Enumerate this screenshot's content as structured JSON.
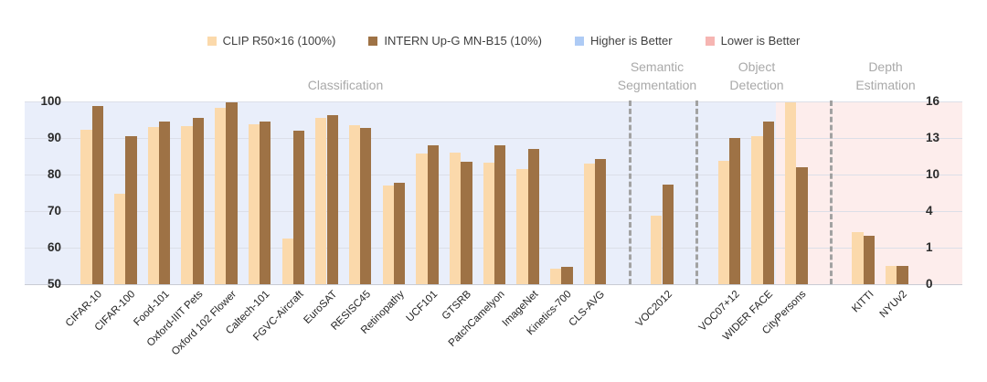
{
  "legend": {
    "items": [
      {
        "label": "CLIP R50×16 (100%)",
        "color": "#fbd9ab"
      },
      {
        "label": "INTERN Up-G MN-B15 (10%)",
        "color": "#9e7245"
      },
      {
        "label": "Higher is Better",
        "color": "#aecbf5"
      },
      {
        "label": "Lower is Better",
        "color": "#f6b5b2"
      }
    ]
  },
  "section_headers": {
    "classification": "Classification",
    "semantic_segmentation": "Semantic Segmentation",
    "object_detection": "Object Detection",
    "depth_estimation": "Depth Estimation"
  },
  "chart_data": {
    "type": "bar",
    "series": [
      {
        "name": "CLIP R50×16 (100%)",
        "color": "#fbd9ab"
      },
      {
        "name": "INTERN Up-G MN-B15 (10%)",
        "color": "#9e7245"
      }
    ],
    "left_axis": {
      "ticks": [
        100,
        90,
        80,
        70,
        60,
        50
      ],
      "min": 50,
      "max": 100,
      "applies_to": "Higher is Better"
    },
    "right_axis": {
      "ticks": [
        16,
        13,
        10,
        4,
        1,
        0
      ],
      "nonlinear_stops": [
        0,
        1,
        4,
        10,
        13,
        16
      ],
      "applies_to": "Lower is Better"
    },
    "background_regions": [
      {
        "label": "Higher is Better",
        "color": "#e9eefa"
      },
      {
        "label": "Lower is Better",
        "color": "#fdedec"
      }
    ],
    "grid": true,
    "legend_position": "top",
    "groups": [
      {
        "category": "CIFAR-10",
        "section": "Classification",
        "axis": "left",
        "values": [
          92.2,
          98.7
        ]
      },
      {
        "category": "CIFAR-100",
        "section": "Classification",
        "axis": "left",
        "values": [
          74.8,
          90.5
        ]
      },
      {
        "category": "Food-101",
        "section": "Classification",
        "axis": "left",
        "values": [
          93.1,
          94.4
        ]
      },
      {
        "category": "Oxford-IIIT Pets",
        "section": "Classification",
        "axis": "left",
        "values": [
          93.3,
          95.4
        ]
      },
      {
        "category": "Oxford 102 Flower",
        "section": "Classification",
        "axis": "left",
        "values": [
          98.3,
          99.7
        ]
      },
      {
        "category": "Caltech-101",
        "section": "Classification",
        "axis": "left",
        "values": [
          93.7,
          94.6
        ]
      },
      {
        "category": "FGVC-Aircraft",
        "section": "Classification",
        "axis": "left",
        "values": [
          62.5,
          92.0
        ]
      },
      {
        "category": "EuroSAT",
        "section": "Classification",
        "axis": "left",
        "values": [
          95.4,
          96.2
        ]
      },
      {
        "category": "RESISC45",
        "section": "Classification",
        "axis": "left",
        "values": [
          93.6,
          92.8
        ]
      },
      {
        "category": "Retinopathy",
        "section": "Classification",
        "axis": "left",
        "values": [
          77.0,
          77.8
        ]
      },
      {
        "category": "UCF101",
        "section": "Classification",
        "axis": "left",
        "values": [
          85.8,
          88.0
        ]
      },
      {
        "category": "GTSRB",
        "section": "Classification",
        "axis": "left",
        "values": [
          85.9,
          83.4
        ]
      },
      {
        "category": "PatchCamelyon",
        "section": "Classification",
        "axis": "left",
        "values": [
          83.2,
          88.0
        ]
      },
      {
        "category": "ImageNet",
        "section": "Classification",
        "axis": "left",
        "values": [
          81.4,
          87.1
        ]
      },
      {
        "category": "Kinetics-700",
        "section": "Classification",
        "axis": "left",
        "values": [
          54.2,
          54.8
        ]
      },
      {
        "category": "CLS-AVG",
        "section": "Classification",
        "axis": "left",
        "values": [
          82.9,
          84.3
        ]
      },
      {
        "category": "VOC2012",
        "section": "Semantic Segmentation",
        "axis": "left",
        "values": [
          68.8,
          77.2
        ]
      },
      {
        "category": "VOC07+12",
        "section": "Object Detection",
        "axis": "left",
        "values": [
          83.8,
          90.1
        ]
      },
      {
        "category": "WIDER FACE",
        "section": "Object Detection",
        "axis": "left",
        "values": [
          90.4,
          94.5
        ]
      },
      {
        "category": "CityPersons",
        "section": "Object Detection",
        "axis": "right",
        "values": [
          15.9,
          10.6
        ]
      },
      {
        "category": "KITTI",
        "section": "Depth Estimation",
        "axis": "right",
        "values": [
          2.3,
          2.0
        ]
      },
      {
        "category": "NYUv2",
        "section": "Depth Estimation",
        "axis": "right",
        "values": [
          0.5,
          0.5
        ]
      }
    ]
  }
}
